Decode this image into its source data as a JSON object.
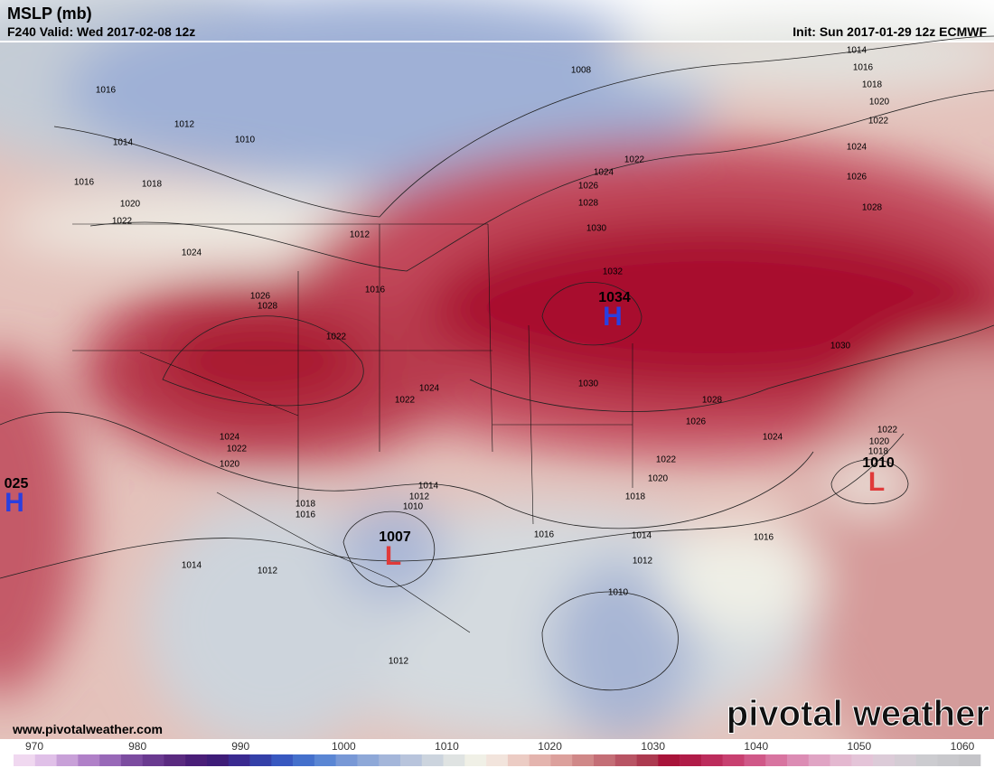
{
  "header": {
    "title": "MSLP (mb)",
    "valid": "F240 Valid: Wed 2017-02-08 12z",
    "init": "Init: Sun 2017-01-29 12z ECMWF"
  },
  "centers": [
    {
      "value": 1034,
      "letter": "H"
    },
    {
      "value": "025",
      "letter": "H"
    },
    {
      "value": 1007,
      "letter": "L"
    },
    {
      "value": 1010,
      "letter": "L"
    }
  ],
  "contour_labels": [
    1008,
    1014,
    1016,
    1018,
    1020,
    1022,
    1024,
    1026,
    1028,
    1016,
    1012,
    1010,
    1014,
    1016,
    1018,
    1020,
    1022,
    1012,
    1024,
    1016,
    1026,
    1028,
    1022,
    1022,
    1024,
    1026,
    1028,
    1030,
    1032,
    1024,
    1022,
    1030,
    1028,
    1026,
    1024,
    1022,
    1020,
    1018,
    1016,
    1014,
    1012,
    1010,
    1016,
    1014,
    1012,
    1010,
    1024,
    1022,
    1020,
    1018,
    1016,
    1014,
    1012,
    1012,
    1030,
    1022,
    1020,
    1018
  ],
  "footer": {
    "website": "www.pivotalweather.com",
    "brand": "pivotal weather"
  },
  "colorbar": {
    "labels": [
      970,
      980,
      990,
      1000,
      1010,
      1020,
      1030,
      1040,
      1050,
      1060
    ],
    "colors": [
      "#f0d8f0",
      "#e0c0e8",
      "#c8a0d8",
      "#b080c8",
      "#9868b8",
      "#7c4ca0",
      "#6a3a90",
      "#5a2a80",
      "#4a1e78",
      "#3e1c78",
      "#3a2a90",
      "#3440a8",
      "#3858c0",
      "#4470cc",
      "#5a86d4",
      "#7898d6",
      "#8ea8d8",
      "#a4b6da",
      "#b8c4dc",
      "#ccd4de",
      "#dfe3e2",
      "#f0f0e6",
      "#f2e4dc",
      "#ecccc4",
      "#e4b4ae",
      "#dca09c",
      "#d08888",
      "#c46e76",
      "#b85464",
      "#ac3a50",
      "#a8143a",
      "#b01c48",
      "#bc2c5c",
      "#c84070",
      "#d05888",
      "#d874a0",
      "#dc8cb4",
      "#e0a4c4",
      "#e4b8d0",
      "#e4c4d8",
      "#dccbd8",
      "#d4ccd4",
      "#ccccd0",
      "#c8c8cc",
      "#c4c4c8"
    ]
  }
}
